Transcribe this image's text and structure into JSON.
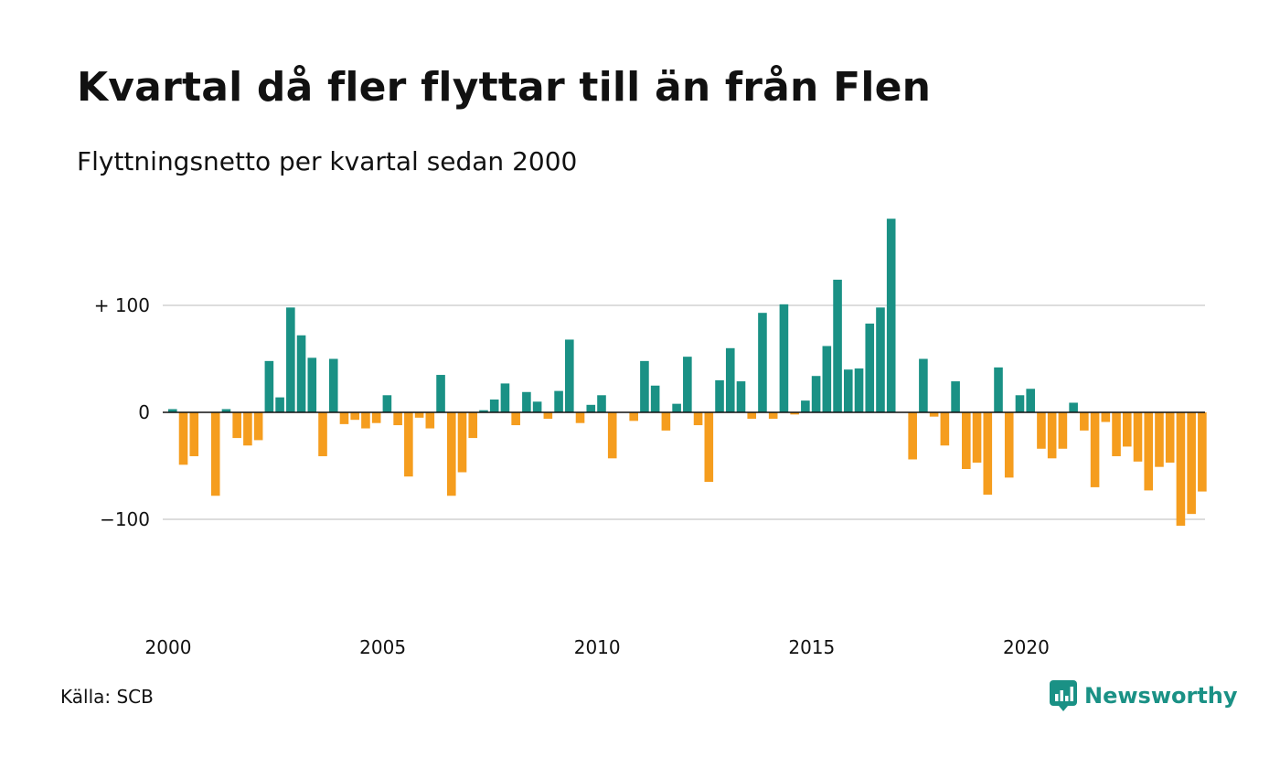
{
  "title": "Kvartal då fler flyttar till än från Flen",
  "subtitle": "Flyttningsnetto per kvartal sedan 2000",
  "source": "Källa: SCB",
  "brand": {
    "name": "Newsworthy",
    "icon": "newsworthy-logo-icon"
  },
  "colors": {
    "positive": "#1a9185",
    "negative": "#f59d1e",
    "grid": "#dddddd",
    "zero": "#111111"
  },
  "chart_data": {
    "type": "bar",
    "xlabel": "",
    "ylabel": "",
    "ylim": [
      -185,
      185
    ],
    "y_ticks": [
      {
        "value": 100,
        "label": "+ 100"
      },
      {
        "value": 0,
        "label": "0"
      },
      {
        "value": -100,
        "label": "−100"
      }
    ],
    "x_ticks": [
      "2000",
      "2005",
      "2010",
      "2015",
      "2020"
    ],
    "grid": true,
    "start_year": 2000,
    "values": [
      3,
      -49,
      -41,
      0,
      -78,
      3,
      -24,
      -31,
      -26,
      48,
      14,
      98,
      72,
      51,
      -41,
      50,
      -11,
      -7,
      -15,
      -10,
      16,
      -12,
      -60,
      -5,
      -15,
      35,
      -78,
      -56,
      -24,
      2,
      12,
      27,
      -12,
      19,
      10,
      -6,
      20,
      68,
      -10,
      7,
      16,
      -43,
      0,
      -8,
      48,
      25,
      -17,
      8,
      52,
      -12,
      -65,
      30,
      60,
      29,
      -6,
      93,
      -6,
      101,
      -2,
      11,
      34,
      62,
      124,
      40,
      41,
      83,
      98,
      181,
      0,
      -44,
      50,
      -4,
      -31,
      29,
      -53,
      -47,
      -77,
      42,
      -61,
      16,
      22,
      -34,
      -43,
      -34,
      9,
      -17,
      -70,
      -9,
      -41,
      -32,
      -46,
      -73,
      -51,
      -47,
      -106,
      -95,
      -74
    ]
  }
}
